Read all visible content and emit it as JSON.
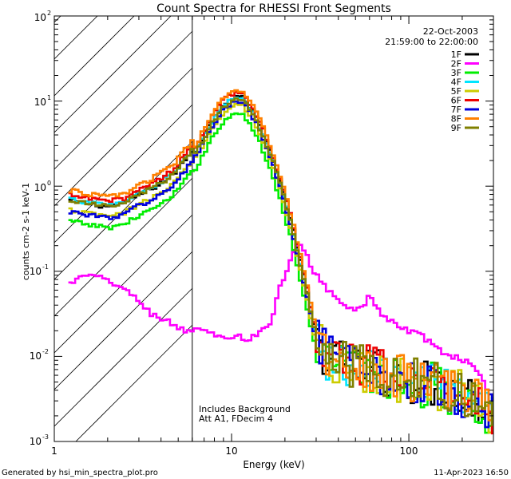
{
  "chart_data": {
    "type": "line",
    "title": "Count Spectra for RHESSI Front Segments",
    "xlabel": "Energy (keV)",
    "ylabel": "counts cm-2 s-1 keV-1",
    "xscale": "log",
    "yscale": "log",
    "xlim": [
      1,
      300
    ],
    "ylim": [
      0.001,
      100
    ],
    "x_tick_labels": [
      "1",
      "10",
      "100"
    ],
    "y_tick_labels": [
      {
        "base": "10",
        "exp": "-3"
      },
      {
        "base": "10",
        "exp": "-2"
      },
      {
        "base": "10",
        "exp": "-1"
      },
      {
        "base": "10",
        "exp": "0"
      },
      {
        "base": "10",
        "exp": "1"
      },
      {
        "base": "10",
        "exp": "2"
      }
    ],
    "shaded_region_keV": [
      1,
      6
    ],
    "annotations": [
      "22-Oct-2003",
      "21:59:00 to 22:00:00"
    ],
    "note_lines": [
      "Includes Background",
      "Att A1, FDecim 4"
    ],
    "footer_left": "Generated by hsi_min_spectra_plot.pro",
    "footer_right": "11-Apr-2023 16:50",
    "series": [
      {
        "name": "1F",
        "color": "#000000",
        "scale": 1.0,
        "low": 0.45,
        "noise": 1
      },
      {
        "name": "2F",
        "color": "#ff00ff",
        "scale": 1.0,
        "low": 0.45,
        "noise": 0.6
      },
      {
        "name": "3F",
        "color": "#00ee00",
        "scale": 0.62,
        "low": 0.35,
        "noise": 1.1
      },
      {
        "name": "4F",
        "color": "#00e5ff",
        "scale": 0.95,
        "low": 0.55,
        "noise": 1
      },
      {
        "name": "5F",
        "color": "#cccc00",
        "scale": 0.8,
        "low": 0.4,
        "noise": 1
      },
      {
        "name": "6F",
        "color": "#ee0000",
        "scale": 1.1,
        "low": 0.5,
        "noise": 1
      },
      {
        "name": "7F",
        "color": "#0000dd",
        "scale": 0.85,
        "low": 0.3,
        "noise": 1
      },
      {
        "name": "8F",
        "color": "#ff8000",
        "scale": 1.15,
        "low": 0.6,
        "noise": 1
      },
      {
        "name": "9F",
        "color": "#808000",
        "scale": 0.92,
        "low": 0.55,
        "noise": 1
      }
    ],
    "base_spectrum": {
      "energy_keV": [
        1.2,
        1.5,
        2,
        2.5,
        3,
        3.5,
        4,
        4.5,
        5,
        5.5,
        6,
        6.5,
        7,
        7.5,
        8,
        8.5,
        9,
        9.5,
        10,
        10.5,
        11,
        11.5,
        12,
        13,
        14,
        15,
        16,
        17,
        18,
        19,
        20,
        21,
        22,
        24,
        26,
        28,
        30,
        32,
        35,
        38,
        42,
        46,
        50,
        55,
        60,
        70,
        80,
        90,
        100,
        120,
        140,
        160,
        180,
        200,
        230,
        260,
        300
      ],
      "counts": [
        0.6,
        0.55,
        0.5,
        0.55,
        0.7,
        0.8,
        0.95,
        1.1,
        1.4,
        1.8,
        2.3,
        3.0,
        4.0,
        5.2,
        6.5,
        8.0,
        9.2,
        10.2,
        10.8,
        11.3,
        11.5,
        11.0,
        10.2,
        8.0,
        6.0,
        4.3,
        3.1,
        2.2,
        1.5,
        1.05,
        0.72,
        0.5,
        0.34,
        0.16,
        0.075,
        0.035,
        0.018,
        0.012,
        0.009,
        0.008,
        0.0075,
        0.0072,
        0.007,
        0.0068,
        0.0066,
        0.006,
        0.0055,
        0.005,
        0.0048,
        0.0045,
        0.0042,
        0.004,
        0.0037,
        0.0034,
        0.003,
        0.0025,
        0.002
      ]
    },
    "detector_2F_spectrum": {
      "energy_keV": [
        1.2,
        1.5,
        2,
        2.5,
        3,
        3.5,
        4,
        4.5,
        5,
        5.5,
        6,
        6.5,
        7,
        7.5,
        8,
        9,
        10,
        11,
        12,
        13,
        14,
        15,
        16,
        17,
        18,
        20,
        22,
        24,
        26,
        28,
        30,
        35,
        40,
        45,
        50,
        55,
        60,
        65,
        70,
        80,
        90,
        100,
        120,
        140,
        160,
        180,
        200,
        230,
        260,
        300
      ],
      "counts": [
        0.07,
        0.09,
        0.08,
        0.06,
        0.045,
        0.032,
        0.028,
        0.025,
        0.022,
        0.02,
        0.02,
        0.022,
        0.019,
        0.02,
        0.017,
        0.016,
        0.016,
        0.017,
        0.016,
        0.017,
        0.018,
        0.02,
        0.022,
        0.03,
        0.05,
        0.09,
        0.15,
        0.22,
        0.18,
        0.12,
        0.09,
        0.06,
        0.048,
        0.04,
        0.035,
        0.04,
        0.05,
        0.04,
        0.03,
        0.026,
        0.022,
        0.02,
        0.017,
        0.013,
        0.011,
        0.01,
        0.009,
        0.008,
        0.006,
        0.002
      ]
    }
  }
}
